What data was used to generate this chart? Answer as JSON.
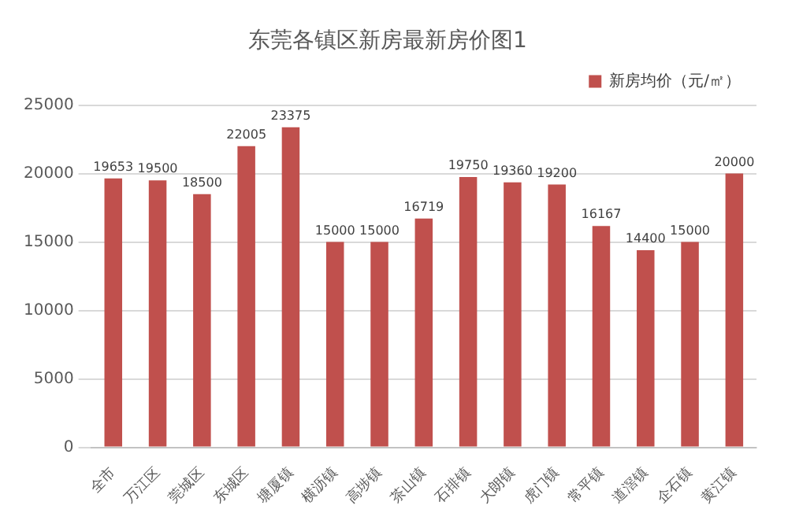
{
  "chart_data": {
    "type": "bar",
    "title": "东莞各镇区新房最新房价图1",
    "categories": [
      "全市",
      "万江区",
      "莞城区",
      "东城区",
      "塘厦镇",
      "横沥镇",
      "高埗镇",
      "茶山镇",
      "石排镇",
      "大朗镇",
      "虎门镇",
      "常平镇",
      "道滘镇",
      "企石镇",
      "黄江镇"
    ],
    "series": [
      {
        "name": "新房均价（元/㎡）",
        "color": "#c0504d",
        "values": [
          19653,
          19500,
          18500,
          22005,
          23375,
          15000,
          15000,
          16719,
          19750,
          19360,
          19200,
          16167,
          14400,
          15000,
          20000
        ]
      }
    ],
    "ylim": [
      0,
      25000
    ],
    "yticks": [
      0,
      5000,
      10000,
      15000,
      20000,
      25000
    ],
    "grid": "y",
    "legend": "top right",
    "data_labels": true
  }
}
